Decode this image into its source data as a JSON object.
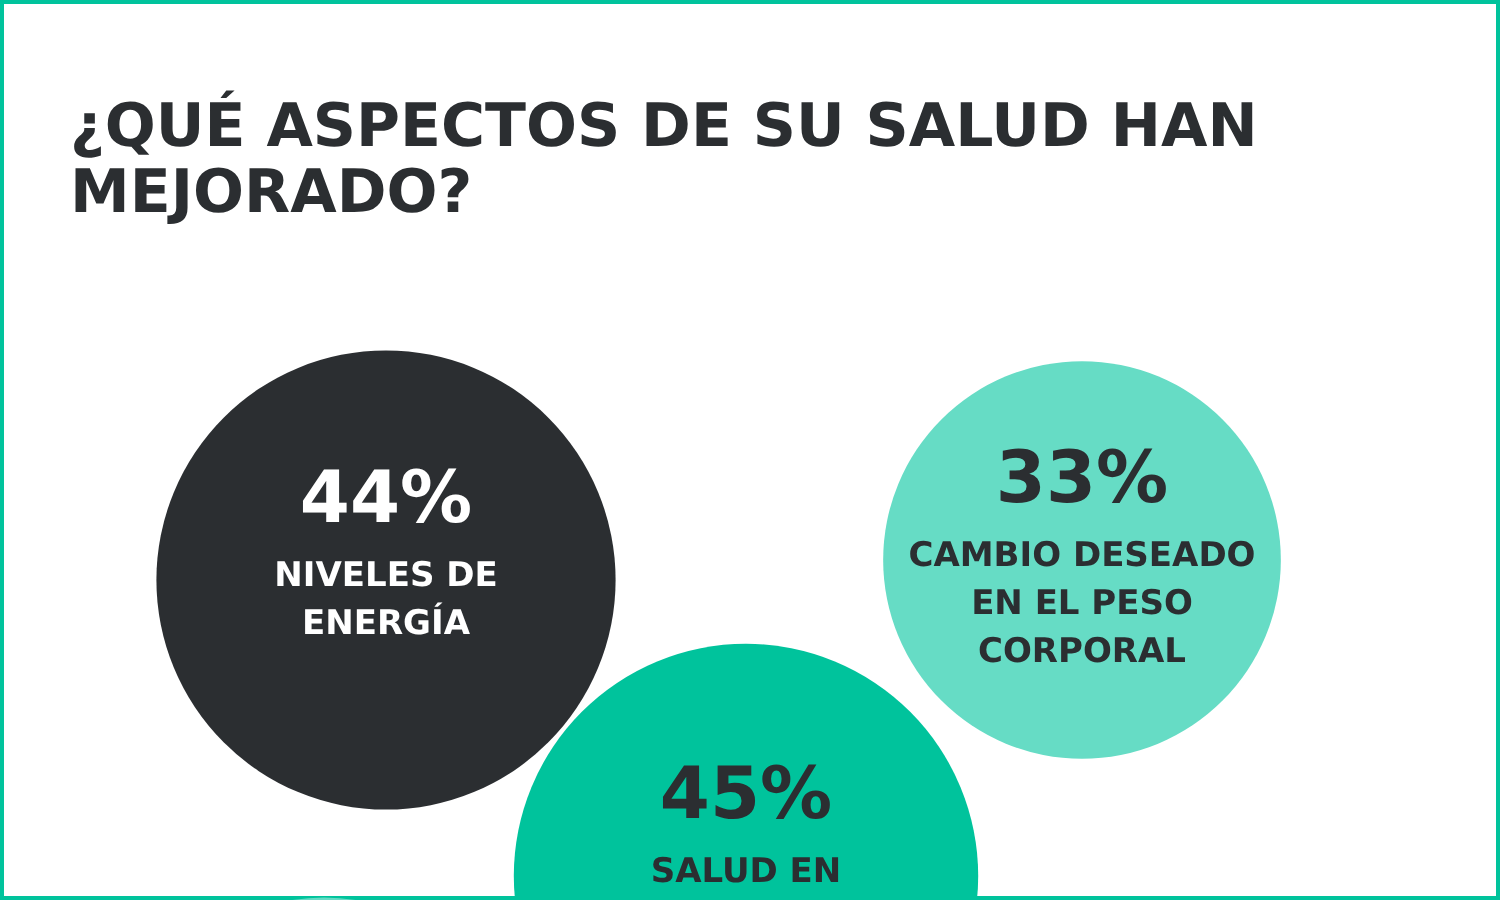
{
  "chart_data": {
    "type": "other",
    "title": "¿QUÉ ASPECTOS DE SU SALUD HAN MEJORADO?",
    "categories": [
      "NIVELES DE ENERGÍA",
      "CAMBIO DESEADO EN EL PESO CORPORAL",
      "SALUD EN",
      null,
      null
    ],
    "values": [
      44,
      33,
      45,
      null,
      null
    ],
    "value_labels": [
      "44%",
      "33%",
      "45%",
      null,
      null
    ],
    "colors": [
      "#2b2e31",
      "#66dcc5",
      "#00c39c",
      "#66dcc5",
      "#2b2e31"
    ]
  }
}
